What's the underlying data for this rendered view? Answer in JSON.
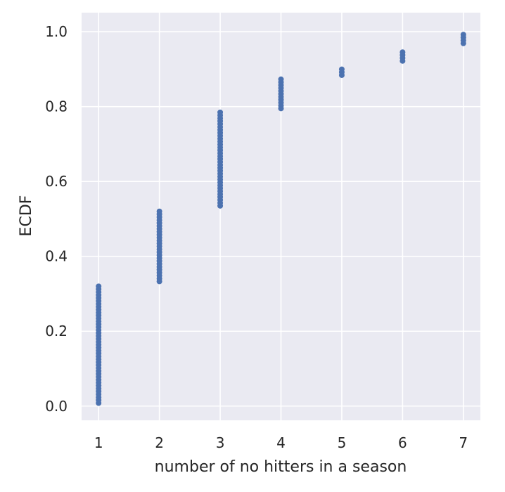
{
  "chart_data": {
    "type": "scatter",
    "title": "",
    "xlabel": "number of no hitters in a season",
    "ylabel": "ECDF",
    "xlim": [
      0.72,
      7.28
    ],
    "ylim": [
      -0.038,
      1.051
    ],
    "xticks": [
      1,
      2,
      3,
      4,
      5,
      6,
      7
    ],
    "yticks": [
      0.0,
      0.2,
      0.4,
      0.6,
      0.8,
      1.0
    ],
    "xtick_labels": [
      "1",
      "2",
      "3",
      "4",
      "5",
      "6",
      "7"
    ],
    "ytick_labels": [
      "0.0",
      "0.2",
      "0.4",
      "0.6",
      "0.8",
      "1.0"
    ],
    "grid": true,
    "background": "#eaeaf2",
    "marker_color": "#4c72b0",
    "series": [
      {
        "groups": [
          {
            "x": 1,
            "y_from": 0.008,
            "y_to": 0.322,
            "step": 0.0078
          },
          {
            "x": 2,
            "y_from": 0.333,
            "y_to": 0.527,
            "step": 0.0078
          },
          {
            "x": 3,
            "y_from": 0.535,
            "y_to": 0.787,
            "step": 0.0078
          },
          {
            "x": 4,
            "y_from": 0.795,
            "y_to": 0.876,
            "step": 0.0078
          },
          {
            "x": 5,
            "y_from": 0.884,
            "y_to": 0.907,
            "step": 0.0078
          },
          {
            "x": 6,
            "y_from": 0.922,
            "y_to": 0.953,
            "step": 0.0078
          },
          {
            "x": 7,
            "y_from": 0.969,
            "y_to": 1.0,
            "step": 0.0078
          }
        ]
      }
    ]
  }
}
